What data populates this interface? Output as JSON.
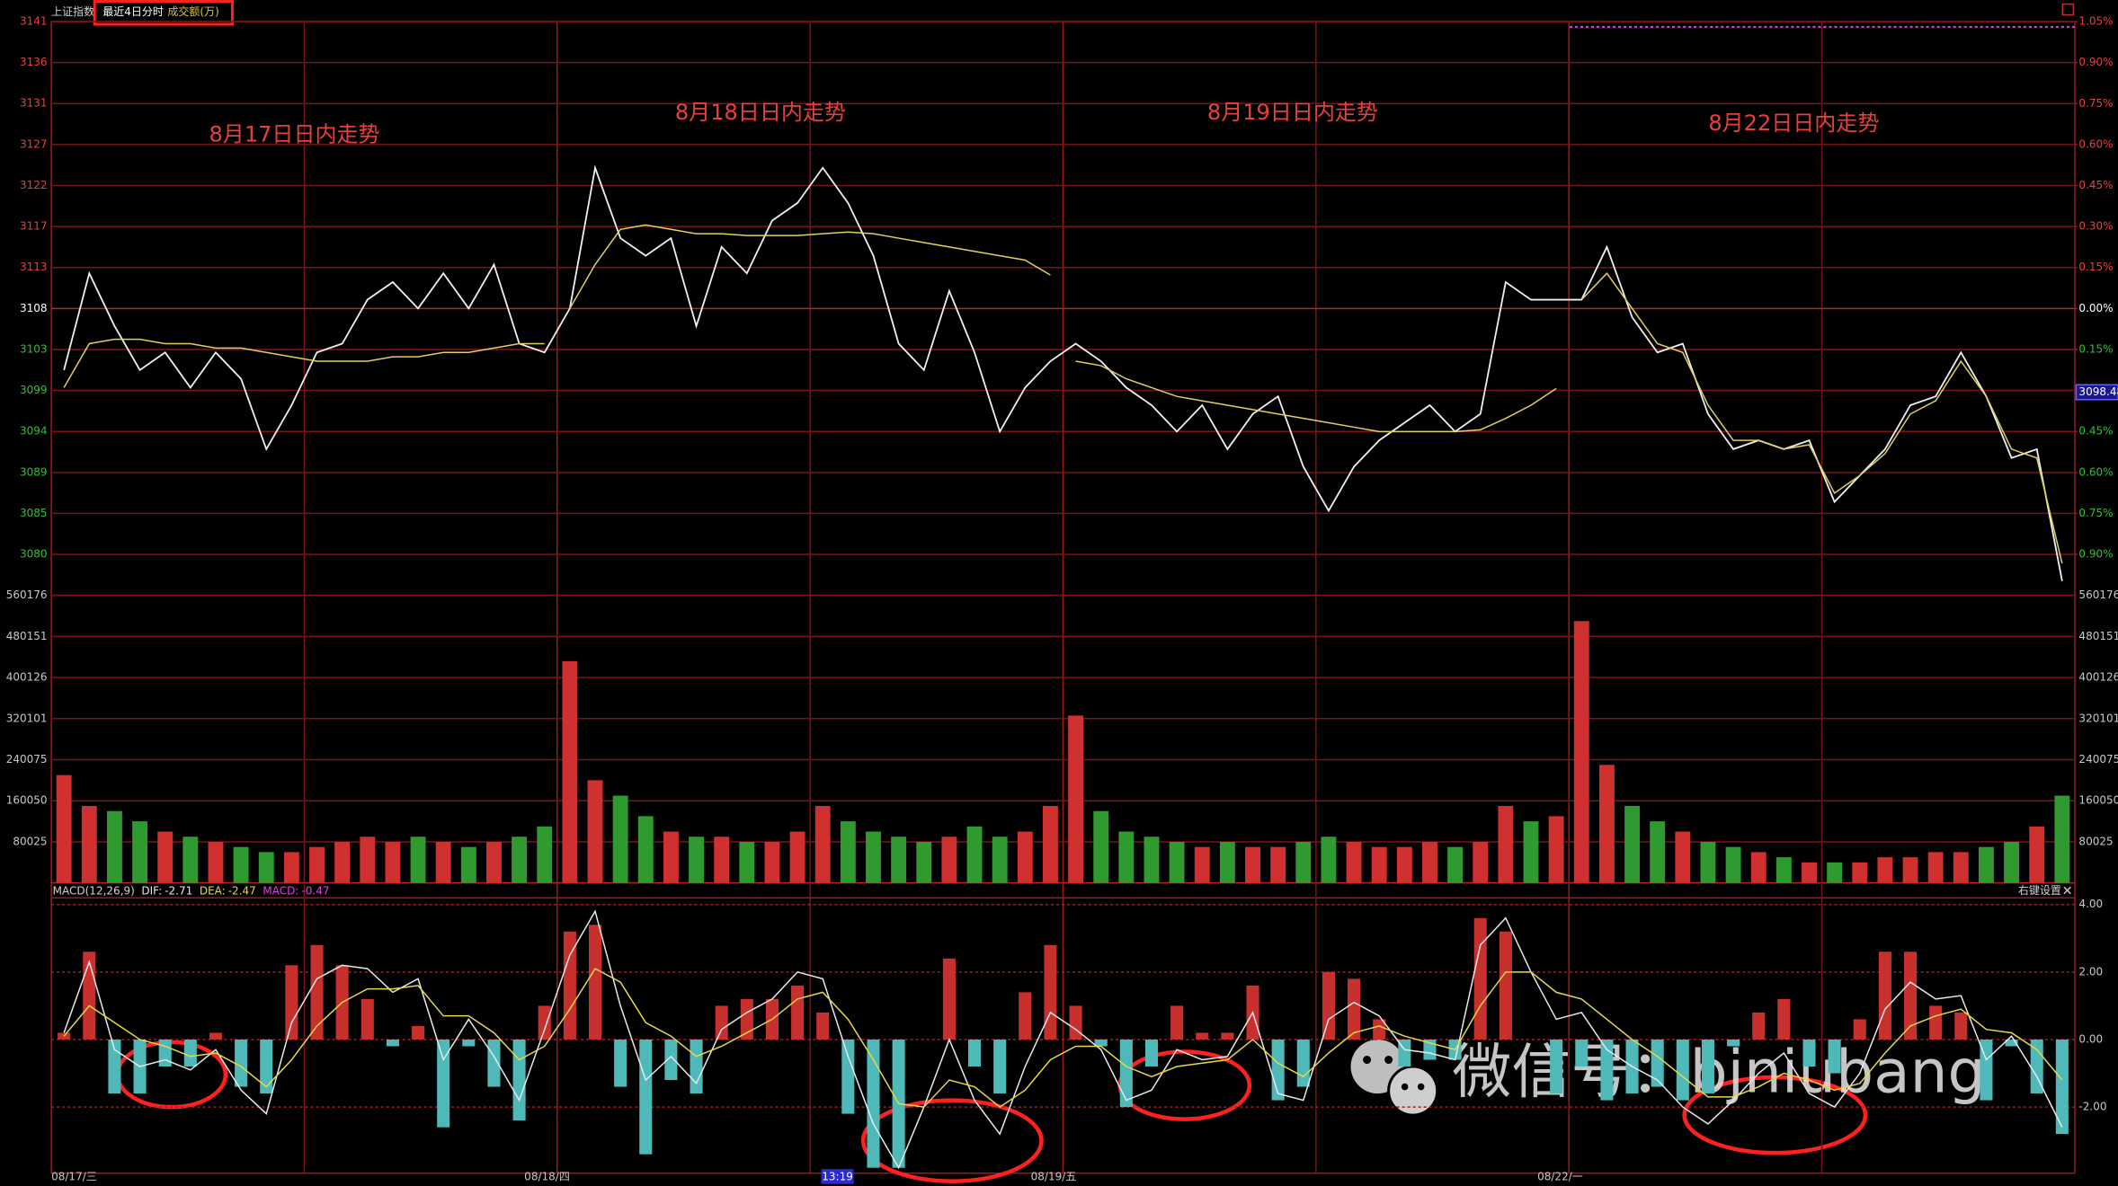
{
  "header": {
    "index_name": "上证指数",
    "mode": "最近4日分时",
    "volume_unit": "成交额(万)"
  },
  "x_axis_labels": [
    "08/17/三",
    "08/18/四",
    "13:19",
    "08/19/五",
    "08/22/一"
  ],
  "watermark": "微信号：bjniubang",
  "chart_data": [
    {
      "type": "line",
      "annotations": [
        "8月17日日内走势",
        "8月18日日内走势",
        "8月19日日内走势",
        "8月22日日内走势"
      ],
      "series": [
        {
          "color": "#f0f0f0",
          "values": [
            3101,
            3112,
            3106,
            3101,
            3103,
            3099,
            3103,
            3100,
            3092,
            3097,
            3103,
            3104,
            3109,
            3111,
            3108,
            3112,
            3108,
            3113,
            3104,
            3103,
            3108,
            3124,
            3116,
            3114,
            3116,
            3106,
            3115,
            3112,
            3118,
            3120,
            3124,
            3120,
            3114,
            3104,
            3101,
            3110,
            3103,
            3094,
            3099,
            3102,
            3104,
            3102,
            3099,
            3097,
            3094,
            3097,
            3092,
            3096,
            3098,
            3090,
            3085,
            3090,
            3093,
            3095,
            3097,
            3094,
            3096,
            3111,
            3109,
            3109,
            3109,
            3115,
            3107,
            3103,
            3104,
            3096,
            3092,
            3093,
            3092,
            3093,
            3086,
            3089,
            3092,
            3097,
            3098,
            3103,
            3098,
            3091,
            3092,
            3077
          ]
        },
        {
          "color": "#e0d060",
          "values": [
            3099,
            3104,
            3104.5,
            3104.5,
            3104,
            3104,
            3103.5,
            3103.5,
            3103,
            3102.5,
            3102,
            3102,
            3102,
            3102.5,
            3102.5,
            3103,
            3103,
            3103.5,
            3104,
            3104,
            3108,
            3113,
            3117,
            3117.5,
            3117,
            3116.5,
            3116.5,
            3116.3,
            3116.3,
            3116.3,
            3116.5,
            3116.7,
            3116.5,
            3116,
            3115.5,
            3115,
            3114.5,
            3114,
            3113.5,
            3111.8,
            3102,
            3101.5,
            3100,
            3099,
            3098,
            3097.5,
            3097,
            3096.5,
            3096,
            3095.5,
            3095,
            3094.5,
            3094,
            3094,
            3094,
            3094,
            3094.2,
            3095.5,
            3097,
            3098.9,
            3109,
            3112,
            3108,
            3104,
            3103,
            3097,
            3093,
            3093,
            3092,
            3092.5,
            3087,
            3089,
            3091.5,
            3096,
            3097.5,
            3102,
            3098,
            3092,
            3091,
            3079
          ]
        }
      ],
      "ylim": [
        3075.37,
        3140.63
      ],
      "yticks": [
        {
          "value": 3140.63,
          "label": "3141"
        },
        {
          "value": 3135.97,
          "label": "3136"
        },
        {
          "value": 3131.31,
          "label": "3131"
        },
        {
          "value": 3126.65,
          "label": "3127"
        },
        {
          "value": 3121.99,
          "label": "3122"
        },
        {
          "value": 3117.32,
          "label": "3117"
        },
        {
          "value": 3112.66,
          "label": "3113"
        },
        3108,
        {
          "value": 3103.34,
          "label": "3103"
        },
        {
          "value": 3098.68,
          "label": "3099"
        },
        {
          "value": 3094.01,
          "label": "3094"
        },
        {
          "value": 3089.35,
          "label": "3089"
        },
        {
          "value": 3084.69,
          "label": "3085"
        },
        {
          "value": 3080.03,
          "label": "3080"
        }
      ],
      "y2lim": [
        -1.05,
        1.05
      ],
      "y2ticks": [
        {
          "value": 1.05,
          "label": "1.05%"
        },
        {
          "value": 0.9,
          "label": "0.90%"
        },
        {
          "value": 0.75,
          "label": "0.75%"
        },
        {
          "value": 0.6,
          "label": "0.60%"
        },
        {
          "value": 0.45,
          "label": "0.45%"
        },
        {
          "value": 0.3,
          "label": "0.30%"
        },
        {
          "value": 0.15,
          "label": "0.15%"
        },
        {
          "value": 0,
          "label": "0.00%"
        },
        {
          "value": -0.15,
          "label": "0.15%"
        },
        {
          "value": -0.3,
          "label": "0.30%"
        },
        {
          "value": -0.45,
          "label": "0.45%"
        },
        {
          "value": -0.6,
          "label": "0.60%"
        },
        {
          "value": -0.75,
          "label": "0.75%"
        },
        {
          "value": -0.9,
          "label": "0.90%"
        }
      ],
      "last_price": 3098.48,
      "grid": true
    },
    {
      "type": "bar",
      "values": [
        210000,
        150000,
        140000,
        120000,
        100000,
        90000,
        80000,
        70000,
        60000,
        60000,
        70000,
        80000,
        90000,
        80000,
        90000,
        80000,
        70000,
        80000,
        90000,
        110000,
        432000,
        200000,
        170000,
        130000,
        100000,
        90000,
        90000,
        80000,
        80000,
        100000,
        150000,
        120000,
        100000,
        90000,
        80000,
        90000,
        110000,
        90000,
        100000,
        150000,
        326000,
        140000,
        100000,
        90000,
        80000,
        70000,
        80000,
        70000,
        70000,
        80000,
        90000,
        80000,
        70000,
        70000,
        80000,
        70000,
        80000,
        150000,
        120000,
        130000,
        510000,
        230000,
        150000,
        120000,
        100000,
        80000,
        70000,
        60000,
        50000,
        40000,
        40000,
        40000,
        50000,
        50000,
        60000,
        60000,
        70000,
        80000,
        110000,
        170000
      ],
      "up_color": "#d03030",
      "down_color": "#2f9a2f",
      "ylim": [
        0,
        560176
      ],
      "yticks": [
        80025,
        160050,
        240075,
        320101,
        400126,
        480151,
        560176
      ],
      "grid": true
    },
    {
      "type": "macd",
      "indicator": "MACD(12,26,9)",
      "readout": [
        {
          "label": "DIF:",
          "value": -2.71,
          "color": "#e8e8e8"
        },
        {
          "label": "DEA:",
          "value": -2.47,
          "color": "#e6d84a"
        },
        {
          "label": "MACD:",
          "value": -0.47,
          "color": "#e040e0"
        }
      ],
      "settings_label": "右键设置",
      "series": [
        {
          "color": "#e8e8e8",
          "values": [
            0.2,
            2.3,
            -0.3,
            -0.8,
            -0.6,
            -0.9,
            -0.3,
            -1.5,
            -2.2,
            0.5,
            1.8,
            2.2,
            2.1,
            1.4,
            1.8,
            -0.6,
            0.6,
            -0.5,
            -1.8,
            0.3,
            2.5,
            3.8,
            1.0,
            -1.2,
            -0.5,
            -1.3,
            0.3,
            0.8,
            1.2,
            2.0,
            1.8,
            -0.5,
            -2.5,
            -3.8,
            -2.0,
            0.0,
            -1.8,
            -2.8,
            -0.8,
            0.8,
            0.3,
            -0.3,
            -1.8,
            -1.5,
            -0.3,
            -0.6,
            -0.5,
            0.8,
            -1.6,
            -1.8,
            0.6,
            1.1,
            0.7,
            -0.3,
            -0.4,
            -0.6,
            2.8,
            3.6,
            2.0,
            0.6,
            0.8,
            -0.3,
            -0.8,
            -1.2,
            -2.0,
            -2.5,
            -1.8,
            -1.0,
            -0.4,
            -1.6,
            -2.0,
            -1.0,
            0.9,
            1.7,
            1.2,
            1.3,
            -0.6,
            0.1,
            -1.1,
            -2.6
          ]
        },
        {
          "color": "#e6d84a",
          "values": [
            0.1,
            1.0,
            0.5,
            0.0,
            -0.2,
            -0.5,
            -0.4,
            -0.8,
            -1.4,
            -0.6,
            0.4,
            1.1,
            1.5,
            1.5,
            1.6,
            0.7,
            0.7,
            0.2,
            -0.6,
            -0.2,
            0.9,
            2.1,
            1.7,
            0.5,
            0.1,
            -0.5,
            -0.2,
            0.2,
            0.6,
            1.2,
            1.4,
            0.6,
            -0.6,
            -1.9,
            -2.0,
            -1.2,
            -1.4,
            -2.0,
            -1.5,
            -0.6,
            -0.2,
            -0.2,
            -0.8,
            -1.1,
            -0.8,
            -0.7,
            -0.6,
            0.0,
            -0.7,
            -1.1,
            -0.4,
            0.2,
            0.4,
            0.1,
            -0.1,
            -0.3,
            1.0,
            2.0,
            2.0,
            1.4,
            1.2,
            0.6,
            0.0,
            -0.5,
            -1.1,
            -1.7,
            -1.7,
            -1.4,
            -1.0,
            -1.2,
            -1.5,
            -1.3,
            -0.4,
            0.4,
            0.7,
            0.9,
            0.3,
            0.2,
            -0.3,
            -1.2
          ]
        }
      ],
      "histogram": {
        "up_color": "#c8302e",
        "down_color": "#4fb8b8",
        "values": [
          0.2,
          2.6,
          -1.6,
          -1.6,
          -0.8,
          -0.8,
          0.2,
          -1.4,
          -1.6,
          2.2,
          2.8,
          2.2,
          1.2,
          -0.2,
          0.4,
          -2.6,
          -0.2,
          -1.4,
          -2.4,
          1.0,
          3.2,
          3.4,
          -1.4,
          -3.4,
          -1.2,
          -1.6,
          1.0,
          1.2,
          1.2,
          1.6,
          0.8,
          -2.2,
          -3.8,
          -3.8,
          0.0,
          2.4,
          -0.8,
          -1.6,
          1.4,
          2.8,
          1.0,
          -0.2,
          -2.0,
          -0.8,
          1.0,
          0.2,
          0.2,
          1.6,
          -1.8,
          -1.4,
          2.0,
          1.8,
          0.6,
          -0.8,
          -0.6,
          -0.6,
          3.6,
          3.2,
          0.0,
          -1.6,
          -0.8,
          -1.8,
          -1.6,
          -1.4,
          -1.8,
          -1.6,
          -0.2,
          0.8,
          1.2,
          -0.8,
          -1.0,
          0.6,
          2.6,
          2.6,
          1.0,
          0.8,
          -1.8,
          -0.2,
          -1.6,
          -2.8
        ]
      },
      "ylim": [
        -4.0,
        4.2
      ],
      "yticks": [
        {
          "value": 4,
          "label": "4.00"
        },
        {
          "value": 2,
          "label": "2.00"
        },
        {
          "value": 0,
          "label": "0.00"
        },
        {
          "value": -2,
          "label": "-2.00"
        }
      ],
      "grid": true
    }
  ]
}
